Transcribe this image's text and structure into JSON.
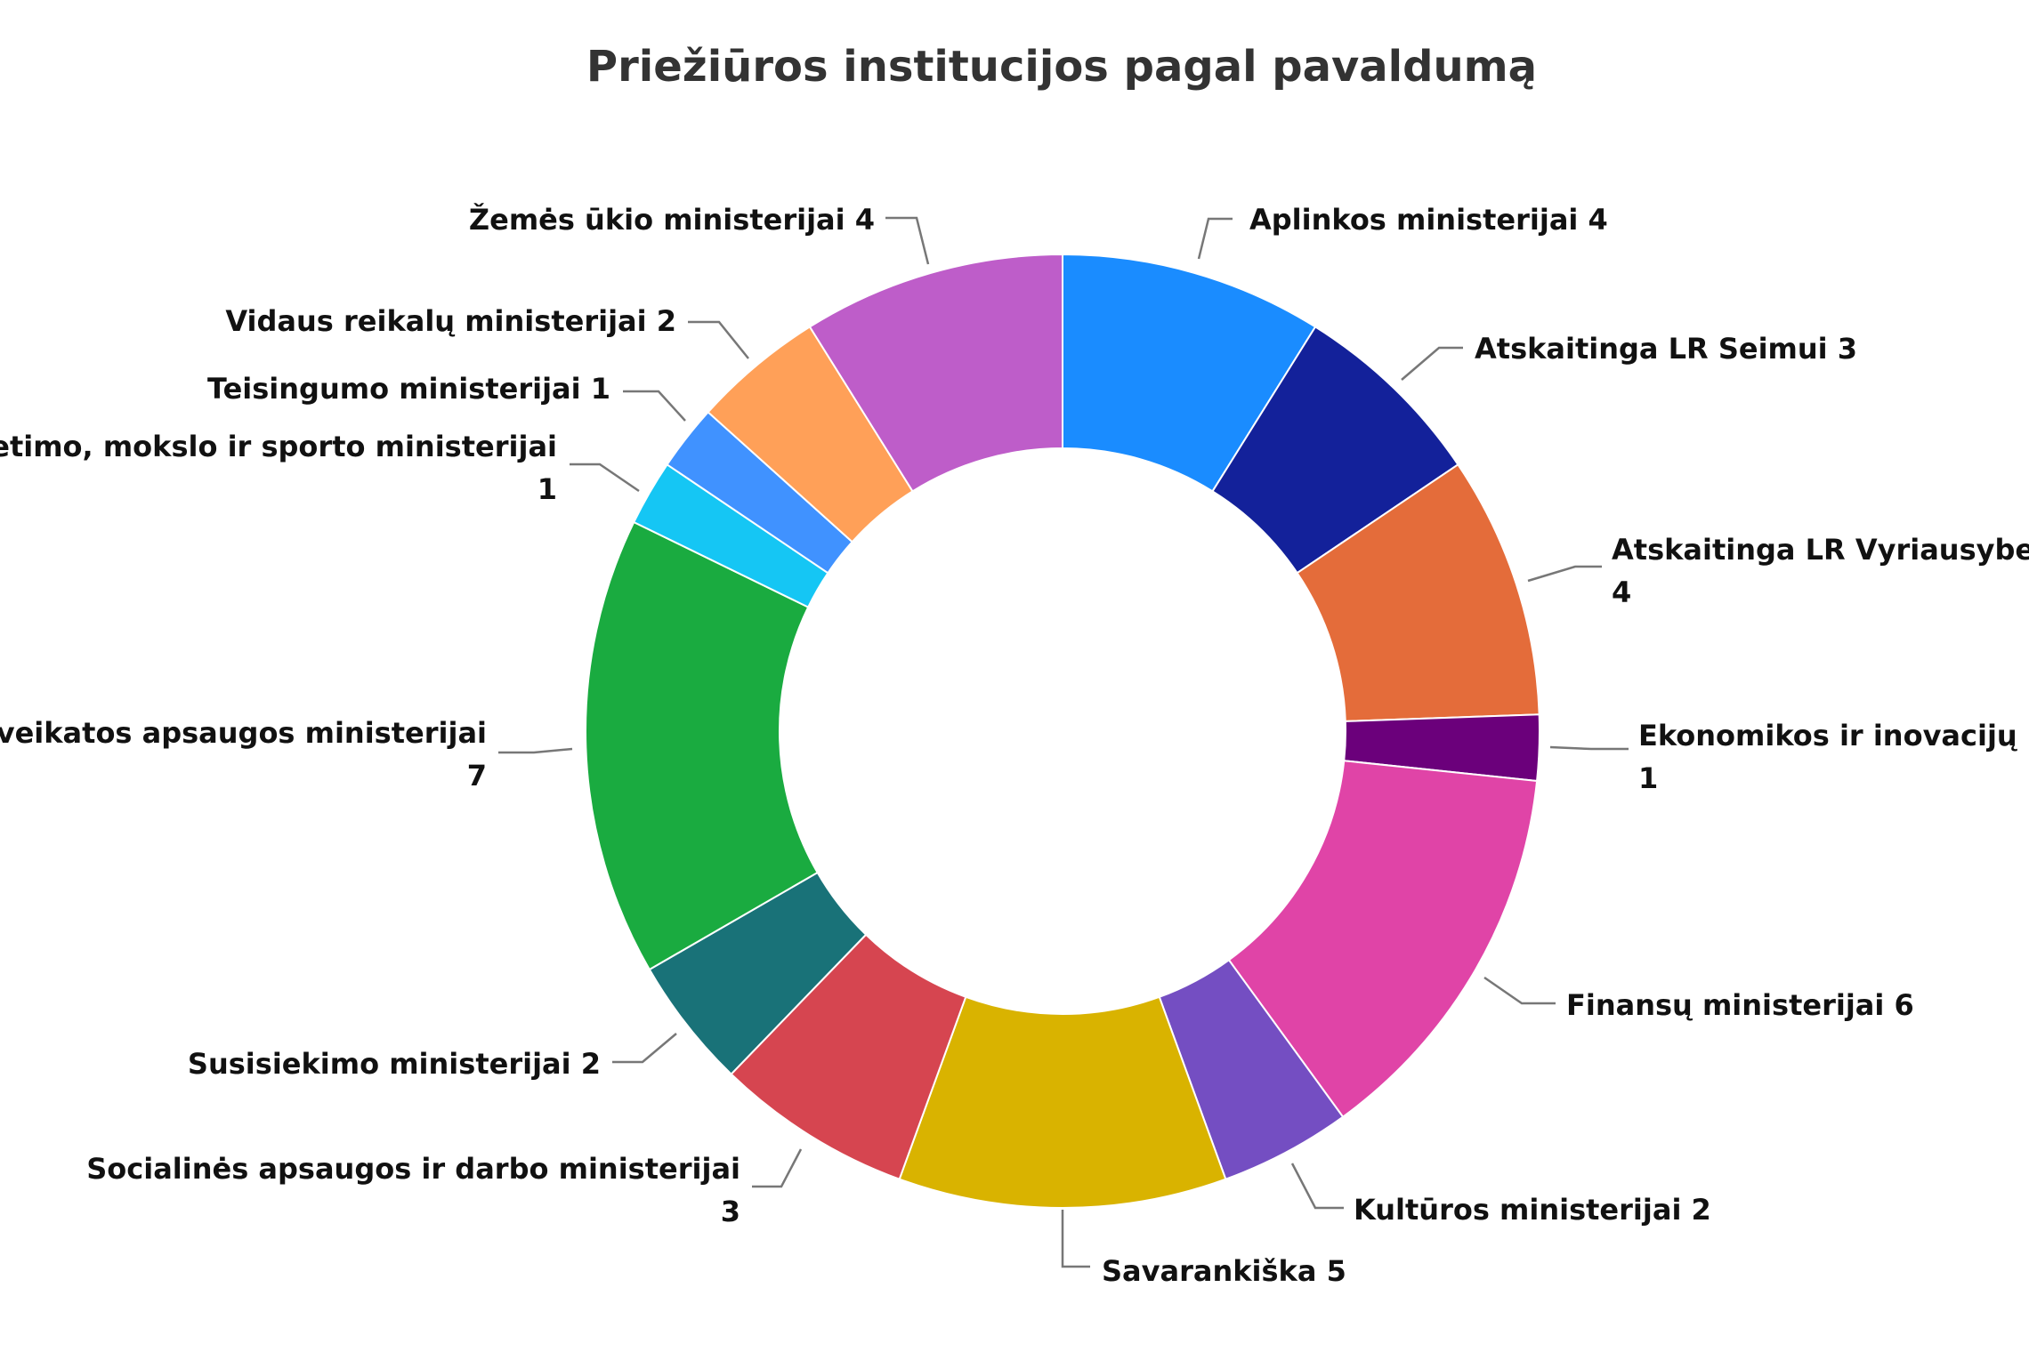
{
  "chart_data": {
    "type": "pie",
    "variant": "donut",
    "title": "Priežiūros institucijos pagal pavaldumą",
    "legend": "none",
    "slices": [
      {
        "label": "Aplinkos ministerijai",
        "value": 4,
        "color": "#1A8CFF"
      },
      {
        "label": "Atskaitinga LR Seimui",
        "value": 3,
        "color": "#13219A"
      },
      {
        "label": "Atskaitinga LR Vyriausybei",
        "value": 4,
        "color": "#E46C3A"
      },
      {
        "label": "Ekonomikos ir inovacijų ministerijai",
        "value": 1,
        "color": "#6B007B"
      },
      {
        "label": "Finansų ministerijai",
        "value": 6,
        "color": "#E044A7"
      },
      {
        "label": "Kultūros ministerijai",
        "value": 2,
        "color": "#744EC2"
      },
      {
        "label": "Savarankiška",
        "value": 5,
        "color": "#D9B300"
      },
      {
        "label": "Socialinės apsaugos ir darbo ministerijai",
        "value": 3,
        "color": "#D64550"
      },
      {
        "label": "Susisiekimo ministerijai",
        "value": 2,
        "color": "#197278"
      },
      {
        "label": "Sveikatos apsaugos ministerijai",
        "value": 7,
        "color": "#1AAB40"
      },
      {
        "label": "Švietimo, mokslo ir sporto ministerijai",
        "value": 1,
        "color": "#15C6F4"
      },
      {
        "label": "Teisingumo ministerijai",
        "value": 1,
        "color": "#4092FF"
      },
      {
        "label": "Vidaus reikalų ministerijai",
        "value": 2,
        "color": "#FFA058"
      },
      {
        "label": "Žemės ūkio ministerijai",
        "value": 4,
        "color": "#BE5DC9"
      }
    ]
  }
}
